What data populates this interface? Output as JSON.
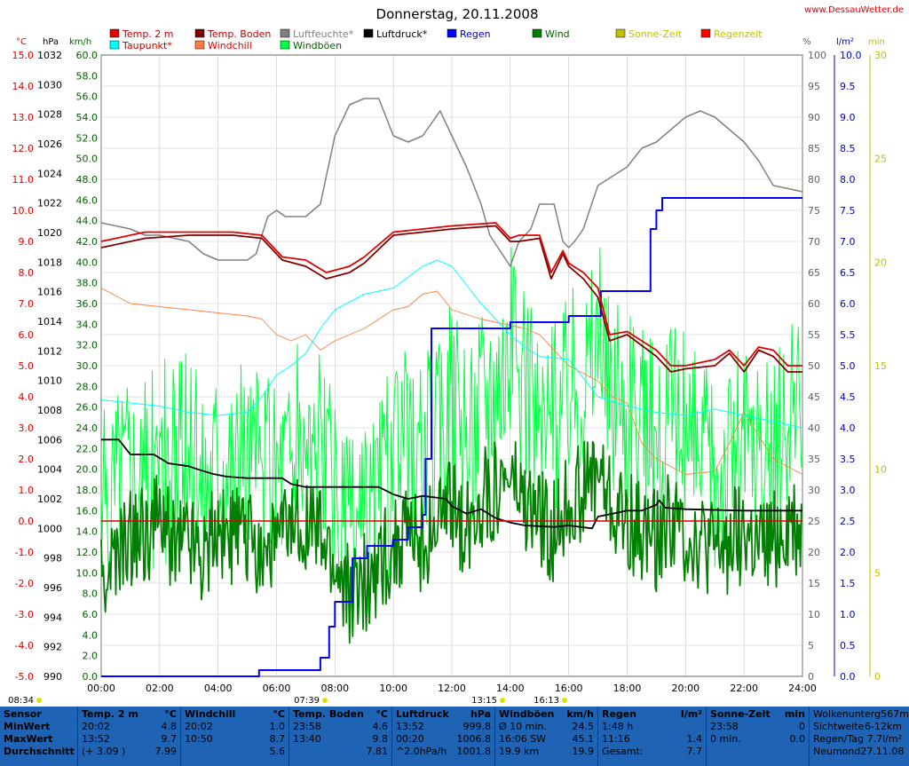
{
  "header": {
    "title": "Donnerstag, 20.11.2008",
    "site": "www.DessauWetter.de"
  },
  "legend": [
    {
      "label": "Temp. 2 m",
      "color": "#e00000"
    },
    {
      "label": "Temp. Boden",
      "color": "#800000"
    },
    {
      "label": "Luftfeuchte*",
      "color": "#808080"
    },
    {
      "label": "Taupunkt*",
      "color": "#00ffff"
    },
    {
      "label": "Windchill",
      "color": "#ff8040"
    },
    {
      "label": "Windböen",
      "color": "#00ff40"
    },
    {
      "label": "Luftdruck*",
      "color": "#000000"
    },
    {
      "label": "Regen",
      "color": "#0000ff"
    },
    {
      "label": "Wind",
      "color": "#008000"
    },
    {
      "label": "Sonne-Zeit",
      "color": "#c0c000"
    },
    {
      "label": "Regenzeit",
      "color": "#ff0000"
    }
  ],
  "axes": {
    "units": {
      "temp": "°C",
      "pressure": "hPa",
      "wind": "km/h",
      "humidity": "%",
      "rain": "l/m²",
      "minutes": "min"
    },
    "temp_ticks": [
      "15.0",
      "14.0",
      "13.0",
      "12.0",
      "11.0",
      "10.0",
      "9.0",
      "8.0",
      "7.0",
      "6.0",
      "5.0",
      "4.0",
      "3.0",
      "2.0",
      "1.0",
      "0.0",
      "-1.0",
      "-2.0",
      "-3.0",
      "-4.0",
      "-5.0"
    ],
    "pressure_ticks": [
      "1032",
      "1030",
      "1028",
      "1026",
      "1024",
      "1022",
      "1020",
      "1018",
      "1016",
      "1014",
      "1012",
      "1010",
      "1008",
      "1006",
      "1004",
      "1002",
      "1000",
      "998",
      "996",
      "994",
      "992",
      "990"
    ],
    "wind_ticks": [
      "60.0",
      "58.0",
      "56.0",
      "54.0",
      "52.0",
      "50.0",
      "48.0",
      "46.0",
      "44.0",
      "42.0",
      "40.0",
      "38.0",
      "36.0",
      "34.0",
      "32.0",
      "30.0",
      "28.0",
      "26.0",
      "24.0",
      "22.0",
      "20.0",
      "18.0",
      "16.0",
      "14.0",
      "12.0",
      "10.0",
      "8.0",
      "6.0",
      "4.0",
      "2.0",
      "0.0"
    ],
    "humidity_ticks": [
      "100",
      "95",
      "90",
      "85",
      "80",
      "75",
      "70",
      "65",
      "60",
      "55",
      "50",
      "45",
      "40",
      "35",
      "30",
      "25",
      "20",
      "15",
      "10",
      "5",
      "0"
    ],
    "rain_ticks": [
      "10.0",
      "9.5",
      "9.0",
      "8.5",
      "8.0",
      "7.5",
      "7.0",
      "6.5",
      "6.0",
      "5.5",
      "5.0",
      "4.5",
      "4.0",
      "3.5",
      "3.0",
      "2.5",
      "2.0",
      "1.5",
      "1.0",
      "0.5",
      "0.0"
    ],
    "minutes_ticks": [
      "30",
      "25",
      "20",
      "15",
      "10",
      "5",
      "0"
    ],
    "time_ticks": [
      "00:00",
      "02:00",
      "04:00",
      "06:00",
      "08:00",
      "10:00",
      "12:00",
      "14:00",
      "16:00",
      "18:00",
      "20:00",
      "22:00",
      "24:00"
    ],
    "sun_markers": [
      "08:34",
      "07:39",
      "13:15",
      "16:13"
    ]
  },
  "chart_data": {
    "type": "line",
    "x_unit": "hours",
    "series": [
      {
        "name": "Temp. 2 m",
        "axis": "temp",
        "x": [
          0,
          1,
          1.5,
          3,
          4.5,
          5.5,
          6.2,
          7,
          7.7,
          8.5,
          9,
          10,
          11,
          12,
          13.5,
          14,
          14.3,
          15,
          15.4,
          15.8,
          16,
          16.5,
          17,
          17.4,
          18,
          19,
          19.5,
          20,
          21,
          21.5,
          22,
          22.5,
          23,
          23.5,
          24
        ],
        "values": [
          9.0,
          9.2,
          9.3,
          9.3,
          9.3,
          9.2,
          8.5,
          8.4,
          8.0,
          8.2,
          8.5,
          9.3,
          9.4,
          9.5,
          9.6,
          9.1,
          9.2,
          9.2,
          8.0,
          8.7,
          8.3,
          8.0,
          7.5,
          6.0,
          6.1,
          5.5,
          5.0,
          5.0,
          5.2,
          5.5,
          5.0,
          5.6,
          5.5,
          5.0,
          5.0
        ]
      },
      {
        "name": "Temp. Boden",
        "axis": "temp",
        "x": [
          0,
          1,
          1.5,
          3,
          4.5,
          5.5,
          6.2,
          7,
          7.7,
          8.5,
          9,
          10,
          11,
          12,
          13.5,
          14,
          14.3,
          15,
          15.4,
          15.8,
          16,
          16.5,
          17,
          17.4,
          18,
          19,
          19.5,
          20,
          21,
          21.5,
          22,
          22.5,
          23,
          23.5,
          24
        ],
        "values": [
          8.8,
          9.0,
          9.1,
          9.2,
          9.2,
          9.1,
          8.4,
          8.2,
          7.8,
          8.0,
          8.3,
          9.2,
          9.3,
          9.4,
          9.5,
          9.0,
          9.0,
          9.1,
          7.8,
          8.6,
          8.2,
          7.8,
          7.2,
          5.8,
          6.0,
          5.3,
          4.8,
          4.9,
          5.0,
          5.4,
          4.8,
          5.5,
          5.3,
          4.8,
          4.8
        ]
      },
      {
        "name": "Taupunkt*",
        "axis": "temp",
        "x": [
          0,
          1,
          2,
          3,
          4,
          5,
          5.5,
          6,
          6.5,
          7,
          7.5,
          8,
          9,
          10,
          11,
          11.5,
          12,
          13,
          14,
          14.5,
          15,
          16,
          17,
          18,
          19,
          20,
          21,
          22,
          23,
          24
        ],
        "values": [
          3.9,
          3.8,
          3.7,
          3.5,
          3.4,
          3.5,
          4.0,
          4.7,
          5.0,
          5.4,
          6.2,
          6.8,
          7.3,
          7.5,
          8.2,
          8.4,
          8.2,
          7.0,
          6.0,
          5.6,
          5.3,
          5.2,
          4.0,
          3.7,
          3.5,
          3.4,
          3.6,
          3.4,
          3.2,
          3.0
        ]
      },
      {
        "name": "Windchill",
        "axis": "temp",
        "x": [
          0,
          1,
          2,
          3,
          4,
          5,
          5.5,
          6,
          6.5,
          7,
          7.5,
          8,
          9,
          10,
          10.5,
          11,
          11.5,
          12,
          13,
          14,
          14.5,
          15,
          16,
          17,
          17.5,
          18,
          18.5,
          19,
          20,
          21,
          21.5,
          22,
          23,
          24
        ],
        "values": [
          7.5,
          7.0,
          6.9,
          6.8,
          6.7,
          6.6,
          6.5,
          6.0,
          5.8,
          6.0,
          5.5,
          5.8,
          6.2,
          6.8,
          6.9,
          7.3,
          7.4,
          6.8,
          6.5,
          6.3,
          6.2,
          6.0,
          5.0,
          4.5,
          4.0,
          3.8,
          2.5,
          2.0,
          1.5,
          1.6,
          2.5,
          3.5,
          2.0,
          1.5
        ]
      },
      {
        "name": "Luftfeuchte*",
        "axis": "humidity",
        "x": [
          0,
          1,
          1.5,
          2,
          3,
          3.5,
          4,
          4.5,
          5,
          5.3,
          5.7,
          6,
          6.3,
          7,
          7.5,
          8,
          8.5,
          9,
          9.5,
          10,
          10.5,
          11,
          11.6,
          12,
          12.5,
          13,
          13.3,
          14,
          14.3,
          14.7,
          15,
          15.5,
          15.8,
          16,
          16.2,
          16.5,
          17,
          18,
          18.5,
          19,
          20,
          20.5,
          21,
          21.5,
          22,
          22.5,
          23,
          24
        ],
        "values": [
          73,
          72,
          71,
          71,
          70,
          68,
          67,
          67,
          67,
          68,
          74,
          75,
          74,
          74,
          76,
          87,
          92,
          93,
          93,
          87,
          86,
          87,
          91,
          87,
          82,
          76,
          71,
          66,
          70,
          72,
          76,
          76,
          70,
          69,
          70,
          72,
          79,
          82,
          85,
          86,
          90,
          91,
          90,
          88,
          86,
          83,
          79,
          78
        ]
      },
      {
        "name": "Luftdruck*",
        "axis": "pressure",
        "x": [
          0,
          0.6,
          1,
          1.8,
          2.3,
          3,
          3.3,
          3.8,
          4.3,
          5,
          6.2,
          6.5,
          7,
          9.5,
          10,
          10.5,
          11,
          11.8,
          12,
          12.5,
          13,
          13.5,
          14,
          14.5,
          15.5,
          16,
          16.8,
          17,
          17.5,
          18,
          18.5,
          19,
          19.1,
          19.3,
          20,
          22,
          24
        ],
        "values": [
          1006.0,
          1006.0,
          1005.0,
          1005.0,
          1004.4,
          1004.2,
          1004.0,
          1003.7,
          1003.5,
          1003.4,
          1003.4,
          1003.0,
          1002.8,
          1002.8,
          1002.3,
          1002.0,
          1002.2,
          1002.0,
          1001.5,
          1001.0,
          1001.3,
          1000.7,
          1000.4,
          1000.2,
          1000.1,
          1000.2,
          1000.0,
          1000.8,
          1001.0,
          1001.2,
          1001.2,
          1001.6,
          1001.9,
          1001.4,
          1001.3,
          1001.2,
          1001.2
        ]
      },
      {
        "name": "Regen",
        "axis": "rain",
        "x": [
          0,
          5.3,
          5.4,
          7.3,
          7.5,
          7.8,
          8,
          8.6,
          9.1,
          10,
          10.5,
          11,
          11.1,
          11.3,
          13.5,
          14,
          15.5,
          16,
          17,
          17.1,
          18.3,
          18.8,
          19,
          19.2,
          20,
          24
        ],
        "values": [
          0.0,
          0.0,
          0.1,
          0.1,
          0.3,
          0.8,
          1.2,
          1.9,
          2.1,
          2.2,
          2.4,
          2.6,
          3.5,
          5.6,
          5.6,
          5.7,
          5.7,
          5.8,
          5.8,
          6.2,
          6.2,
          7.2,
          7.5,
          7.7,
          7.7,
          7.7
        ]
      },
      {
        "name": "Wind",
        "axis": "wind",
        "x": [
          0,
          0.5,
          1,
          1.5,
          2,
          2.5,
          3,
          3.5,
          4,
          4.5,
          5,
          5.5,
          6,
          6.5,
          7,
          7.5,
          8,
          8.5,
          9,
          9.5,
          10,
          10.5,
          11,
          11.5,
          12,
          12.5,
          13,
          13.5,
          14,
          14.5,
          15,
          15.5,
          16,
          16.5,
          17,
          17.5,
          18,
          18.5,
          19,
          19.5,
          20,
          20.5,
          21,
          21.5,
          22,
          22.5,
          23,
          23.5,
          24
        ],
        "values": [
          9,
          11,
          13,
          14,
          15,
          13,
          14,
          12,
          15,
          13,
          14,
          12,
          13,
          14,
          15,
          13,
          10,
          8,
          9,
          11,
          12,
          14,
          13,
          15,
          16,
          14,
          17,
          18,
          19,
          16,
          15,
          14,
          17,
          18,
          20,
          16,
          15,
          14,
          13,
          15,
          14,
          13,
          12,
          13,
          14,
          12,
          13,
          15,
          14
        ]
      },
      {
        "name": "Windböen",
        "axis": "wind",
        "x": [
          0,
          0.5,
          1,
          1.5,
          2,
          2.5,
          3,
          3.5,
          4,
          4.5,
          5,
          5.5,
          6,
          6.5,
          7,
          7.5,
          8,
          8.5,
          9,
          9.5,
          10,
          10.5,
          11,
          11.5,
          12,
          12.5,
          13,
          13.5,
          14,
          14.5,
          15,
          15.5,
          16,
          16.5,
          17,
          17.5,
          18,
          18.5,
          19,
          19.5,
          20,
          20.5,
          21,
          21.5,
          22,
          22.5,
          23,
          23.5,
          24
        ],
        "values": [
          15,
          20,
          22,
          19,
          21,
          20,
          22,
          19,
          23,
          21,
          22,
          20,
          21,
          22,
          23,
          21,
          17,
          14,
          15,
          18,
          20,
          22,
          21,
          24,
          26,
          22,
          28,
          30,
          32,
          27,
          25,
          24,
          29,
          30,
          33,
          27,
          25,
          24,
          22,
          25,
          24,
          22,
          20,
          22,
          24,
          20,
          22,
          25,
          24
        ]
      }
    ]
  },
  "table": {
    "row_labels": [
      "Sensor",
      "MinWert",
      "MaxWert",
      "Durchschnitt"
    ],
    "cols": [
      {
        "title": "Temp. 2 m",
        "unit": "°C",
        "rows": [
          [
            "20:02",
            "4.8"
          ],
          [
            "13:52",
            "9.7"
          ],
          [
            "(+ 3.09 )",
            "7.99"
          ]
        ]
      },
      {
        "title": "Windchill",
        "unit": "°C",
        "rows": [
          [
            "20:02",
            "1.0"
          ],
          [
            "10:50",
            "8.7"
          ],
          [
            "",
            "5.6"
          ]
        ]
      },
      {
        "title": "Temp. Boden",
        "unit": "°C",
        "rows": [
          [
            "23:58",
            "4.6"
          ],
          [
            "13:40",
            "9.8"
          ],
          [
            "",
            "7.81"
          ]
        ]
      },
      {
        "title": "Luftdruck",
        "unit": "hPa",
        "rows": [
          [
            "13:52",
            "999.8"
          ],
          [
            "00:20",
            "1006.8"
          ],
          [
            "^2.0hPa/h",
            "1001.8"
          ]
        ]
      },
      {
        "title": "Windböen",
        "unit": "km/h",
        "rows": [
          [
            "Ø 10 min.",
            "24.5"
          ],
          [
            "16:06  SW",
            "45.1"
          ],
          [
            "19.9 km",
            "19.9"
          ]
        ]
      },
      {
        "title": "Regen",
        "unit": "l/m²",
        "rows": [
          [
            "1:48 h",
            ""
          ],
          [
            "11:16",
            "1.4"
          ],
          [
            "Gesamt:",
            "7.7"
          ]
        ]
      },
      {
        "title": "Sonne-Zeit",
        "unit": "min",
        "rows": [
          [
            "",
            ""
          ],
          [
            "23:58",
            "0"
          ],
          [
            "0 min.",
            "0.0"
          ]
        ]
      }
    ],
    "extra": [
      [
        "Wolkenunterg",
        "567m"
      ],
      [
        "Sichtweite",
        "6-12km"
      ],
      [
        "Regen/Tag",
        "7.7l/m²"
      ],
      [
        "Neumond",
        "27.11.08"
      ]
    ]
  }
}
